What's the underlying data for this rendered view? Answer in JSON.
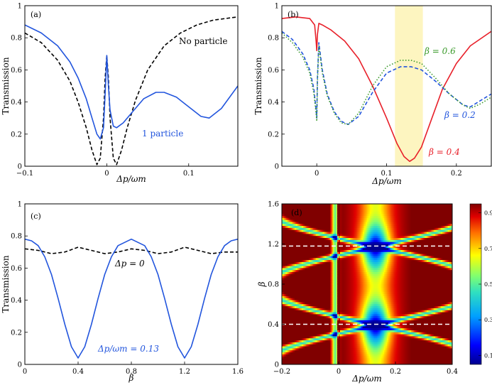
{
  "chart_data": [
    {
      "id": "a",
      "type": "line",
      "panel_label": "(a)",
      "xlabel": "Δp/ωm",
      "ylabel": "Transmission",
      "xlim": [
        -0.1,
        0.16
      ],
      "ylim": [
        0,
        1
      ],
      "xticks": [
        -0.1,
        0,
        0.1
      ],
      "xtick_labels": [
        "−0.1",
        "0",
        "0.1"
      ],
      "yticks": [
        0,
        0.2,
        0.4,
        0.6,
        0.8,
        1
      ],
      "ytick_labels": [
        "0",
        "0.2",
        "0.4",
        "0.6",
        "0.8",
        "1"
      ],
      "series": [
        {
          "name": "No particle",
          "color": "#000000",
          "style": "dashed",
          "x": [
            -0.1,
            -0.08,
            -0.06,
            -0.045,
            -0.035,
            -0.025,
            -0.018,
            -0.012,
            -0.008,
            -0.004,
            -0.002,
            0,
            0.002,
            0.004,
            0.008,
            0.012,
            0.018,
            0.025,
            0.035,
            0.05,
            0.07,
            0.09,
            0.11,
            0.13,
            0.16
          ],
          "y": [
            0.83,
            0.77,
            0.66,
            0.53,
            0.4,
            0.24,
            0.1,
            0.01,
            0.05,
            0.3,
            0.55,
            0.69,
            0.55,
            0.3,
            0.05,
            0.01,
            0.1,
            0.24,
            0.41,
            0.6,
            0.75,
            0.83,
            0.88,
            0.91,
            0.93
          ]
        },
        {
          "name": "1 particle",
          "color": "#2255dd",
          "style": "solid",
          "x": [
            -0.1,
            -0.08,
            -0.06,
            -0.045,
            -0.035,
            -0.025,
            -0.018,
            -0.012,
            -0.008,
            -0.004,
            -0.002,
            0,
            0.002,
            0.004,
            0.008,
            0.012,
            0.02,
            0.03,
            0.045,
            0.06,
            0.07,
            0.085,
            0.1,
            0.115,
            0.125,
            0.14,
            0.16
          ],
          "y": [
            0.88,
            0.83,
            0.75,
            0.65,
            0.55,
            0.42,
            0.3,
            0.2,
            0.17,
            0.24,
            0.45,
            0.69,
            0.5,
            0.35,
            0.25,
            0.24,
            0.27,
            0.33,
            0.42,
            0.46,
            0.46,
            0.43,
            0.37,
            0.31,
            0.3,
            0.36,
            0.5
          ]
        }
      ],
      "annotations": [
        {
          "text": "No particle",
          "color": "#000000"
        },
        {
          "text": "1 particle",
          "color": "#2255dd"
        }
      ]
    },
    {
      "id": "b",
      "type": "line",
      "panel_label": "(b)",
      "xlabel": "Δp/ωm",
      "ylabel": "Transmission",
      "xlim": [
        -0.05,
        0.25
      ],
      "ylim": [
        0,
        1
      ],
      "xticks": [
        0,
        0.1,
        0.2
      ],
      "xtick_labels": [
        "0",
        "0.1",
        "0.2"
      ],
      "yticks": [
        0,
        0.2,
        0.4,
        0.6,
        0.8,
        1
      ],
      "ytick_labels": [
        "0",
        "0.2",
        "0.4",
        "0.6",
        "0.8",
        "1"
      ],
      "highlight_band": {
        "from": 0.112,
        "to": 0.152,
        "color": "#fdf5c0"
      },
      "series": [
        {
          "name": "β = 0.4",
          "color": "#e8202a",
          "style": "solid",
          "x": [
            -0.05,
            -0.03,
            -0.01,
            -0.003,
            -0.001,
            0,
            0.001,
            0.003,
            0.008,
            0.02,
            0.04,
            0.06,
            0.08,
            0.1,
            0.115,
            0.125,
            0.133,
            0.14,
            0.15,
            0.165,
            0.18,
            0.2,
            0.22,
            0.25
          ],
          "y": [
            0.92,
            0.93,
            0.92,
            0.88,
            0.78,
            0.72,
            0.82,
            0.89,
            0.88,
            0.85,
            0.78,
            0.67,
            0.5,
            0.3,
            0.14,
            0.06,
            0.03,
            0.05,
            0.12,
            0.3,
            0.48,
            0.64,
            0.75,
            0.84
          ]
        },
        {
          "name": "β = 0.2",
          "color": "#2255dd",
          "style": "dashed",
          "x": [
            -0.05,
            -0.035,
            -0.02,
            -0.01,
            -0.004,
            -0.001,
            0,
            0.001,
            0.003,
            0.008,
            0.015,
            0.025,
            0.035,
            0.045,
            0.06,
            0.08,
            0.1,
            0.12,
            0.135,
            0.15,
            0.17,
            0.19,
            0.21,
            0.22,
            0.235,
            0.25
          ],
          "y": [
            0.84,
            0.79,
            0.7,
            0.6,
            0.48,
            0.35,
            0.3,
            0.55,
            0.77,
            0.6,
            0.45,
            0.34,
            0.28,
            0.26,
            0.31,
            0.46,
            0.58,
            0.62,
            0.62,
            0.6,
            0.53,
            0.45,
            0.38,
            0.37,
            0.41,
            0.45
          ]
        },
        {
          "name": "β = 0.6",
          "color": "#3a9a2a",
          "style": "dotted",
          "x": [
            -0.05,
            -0.035,
            -0.02,
            -0.01,
            -0.004,
            -0.001,
            0,
            0.001,
            0.003,
            0.008,
            0.015,
            0.025,
            0.035,
            0.045,
            0.06,
            0.08,
            0.1,
            0.12,
            0.135,
            0.15,
            0.17,
            0.19,
            0.21,
            0.22,
            0.235,
            0.25
          ],
          "y": [
            0.83,
            0.77,
            0.68,
            0.58,
            0.45,
            0.33,
            0.28,
            0.52,
            0.75,
            0.58,
            0.44,
            0.33,
            0.27,
            0.26,
            0.33,
            0.5,
            0.62,
            0.66,
            0.66,
            0.64,
            0.55,
            0.45,
            0.38,
            0.36,
            0.39,
            0.43
          ]
        }
      ],
      "annotations": [
        {
          "text": "β = 0.6",
          "color": "#3a9a2a"
        },
        {
          "text": "β = 0.2",
          "color": "#2255dd"
        },
        {
          "text": "β = 0.4",
          "color": "#e8202a"
        }
      ]
    },
    {
      "id": "c",
      "type": "line",
      "panel_label": "(c)",
      "xlabel": "β",
      "ylabel": "Transmission",
      "xlim": [
        0,
        1.6
      ],
      "ylim": [
        0,
        1
      ],
      "xticks": [
        0,
        0.4,
        0.8,
        1.2,
        1.6
      ],
      "xtick_labels": [
        "0",
        "0.4",
        "0.8",
        "1.2",
        "1.6"
      ],
      "yticks": [
        0,
        0.2,
        0.4,
        0.6,
        0.8,
        1
      ],
      "ytick_labels": [
        "0",
        "0.2",
        "0.4",
        "0.6",
        "0.8",
        "1"
      ],
      "series": [
        {
          "name": "Δp = 0",
          "color": "#000000",
          "style": "dashed",
          "x": [
            0,
            0.1,
            0.2,
            0.3,
            0.4,
            0.5,
            0.6,
            0.7,
            0.8,
            0.9,
            1.0,
            1.1,
            1.2,
            1.3,
            1.4,
            1.5,
            1.6
          ],
          "y": [
            0.72,
            0.71,
            0.69,
            0.7,
            0.73,
            0.71,
            0.69,
            0.7,
            0.72,
            0.71,
            0.69,
            0.7,
            0.73,
            0.71,
            0.69,
            0.7,
            0.7
          ]
        },
        {
          "name": "Δp/ωm = 0.13",
          "color": "#2255dd",
          "style": "solid",
          "x": [
            0,
            0.05,
            0.1,
            0.15,
            0.2,
            0.25,
            0.3,
            0.35,
            0.4,
            0.45,
            0.5,
            0.55,
            0.6,
            0.65,
            0.7,
            0.8,
            0.9,
            0.95,
            1.0,
            1.05,
            1.1,
            1.15,
            1.2,
            1.25,
            1.3,
            1.35,
            1.4,
            1.45,
            1.5,
            1.55,
            1.6
          ],
          "y": [
            0.78,
            0.77,
            0.74,
            0.67,
            0.56,
            0.41,
            0.25,
            0.11,
            0.04,
            0.11,
            0.25,
            0.41,
            0.56,
            0.67,
            0.74,
            0.78,
            0.74,
            0.67,
            0.56,
            0.41,
            0.25,
            0.11,
            0.04,
            0.11,
            0.25,
            0.41,
            0.56,
            0.67,
            0.74,
            0.77,
            0.78
          ]
        }
      ],
      "annotations": [
        {
          "text": "Δp = 0",
          "color": "#000000"
        },
        {
          "text": "Δp/ωm = 0.13",
          "color": "#2255dd"
        }
      ]
    },
    {
      "id": "d",
      "type": "heatmap",
      "panel_label": "(d)",
      "xlabel": "Δp/ωm",
      "ylabel": "β",
      "xlim": [
        -0.2,
        0.4
      ],
      "ylim": [
        0,
        1.6
      ],
      "xticks": [
        -0.2,
        0,
        0.2,
        0.4
      ],
      "xtick_labels": [
        "−0.2",
        "0",
        "0.2",
        "0.4"
      ],
      "yticks": [
        0,
        0.4,
        0.8,
        1.2,
        1.6
      ],
      "ytick_labels": [
        "0",
        "0.4",
        "0.8",
        "1.2",
        "1.6"
      ],
      "value_range": [
        0.05,
        0.95
      ],
      "dashed_lines_beta": [
        0.4,
        1.18
      ],
      "colorbar_ticks": [
        0.1,
        0.3,
        0.5,
        0.7,
        0.9
      ],
      "colorbar_tick_labels": [
        "0.1",
        "0.3",
        "0.5",
        "0.7",
        "0.9"
      ]
    }
  ]
}
